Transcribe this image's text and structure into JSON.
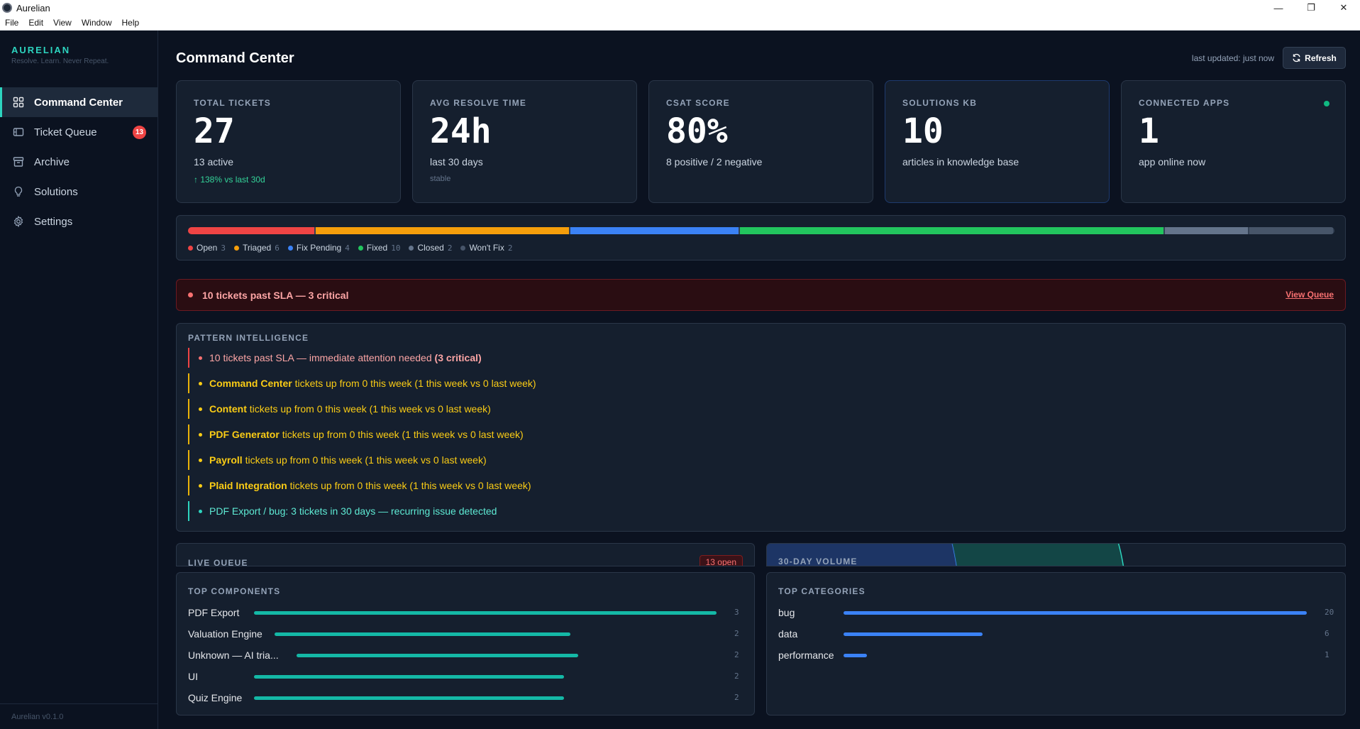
{
  "window": {
    "title": "Aurelian",
    "controls": [
      "—",
      "❐",
      "✕"
    ]
  },
  "menu": [
    "File",
    "Edit",
    "View",
    "Window",
    "Help"
  ],
  "sidebar": {
    "brand": "AURELIAN",
    "tagline": "Resolve. Learn. Never Repeat.",
    "items": [
      {
        "label": "Command Center",
        "icon": "grid-icon",
        "active": true
      },
      {
        "label": "Ticket Queue",
        "icon": "ticket-icon",
        "badge": "13"
      },
      {
        "label": "Archive",
        "icon": "archive-icon"
      },
      {
        "label": "Solutions",
        "icon": "lightbulb-icon"
      },
      {
        "label": "Settings",
        "icon": "gear-icon"
      }
    ],
    "version": "Aurelian v0.1.0"
  },
  "header": {
    "title": "Command Center",
    "last_updated": "last updated: just now",
    "refresh_label": "Refresh"
  },
  "cards": [
    {
      "label": "TOTAL TICKETS",
      "value": "27",
      "sub": "13 active",
      "trend": "↑ 138% vs last 30d"
    },
    {
      "label": "AVG RESOLVE TIME",
      "value": "24h",
      "sub": "last 30 days",
      "trend": "stable"
    },
    {
      "label": "CSAT SCORE",
      "value": "80%",
      "sub": "8 positive / 2 negative"
    },
    {
      "label": "SOLUTIONS KB",
      "value": "10",
      "sub": "articles in knowledge base"
    },
    {
      "label": "CONNECTED APPS",
      "value": "1",
      "sub": "app online now"
    }
  ],
  "status": [
    {
      "label": "Open",
      "count": "3",
      "color": "#ef4444"
    },
    {
      "label": "Triaged",
      "count": "6",
      "color": "#f59e0b"
    },
    {
      "label": "Fix Pending",
      "count": "4",
      "color": "#3b82f6"
    },
    {
      "label": "Fixed",
      "count": "10",
      "color": "#22c55e"
    },
    {
      "label": "Closed",
      "count": "2",
      "color": "#64748b"
    },
    {
      "label": "Won't Fix",
      "count": "2",
      "color": "#475569"
    }
  ],
  "alert": {
    "text": "10 tickets past SLA — 3 critical",
    "link": "View Queue"
  },
  "patterns": {
    "title": "PATTERN INTELLIGENCE",
    "items": [
      {
        "kind": "red",
        "lead": "",
        "text": "10 tickets past SLA — immediate attention needed ",
        "tail": "(3 critical)"
      },
      {
        "kind": "yellow",
        "lead": "Command Center",
        "text": " tickets up from 0 this week (1 this week vs 0 last week)",
        "tail": ""
      },
      {
        "kind": "yellow",
        "lead": "Content",
        "text": " tickets up from 0 this week (1 this week vs 0 last week)",
        "tail": ""
      },
      {
        "kind": "yellow",
        "lead": "PDF Generator",
        "text": " tickets up from 0 this week (1 this week vs 0 last week)",
        "tail": ""
      },
      {
        "kind": "yellow",
        "lead": "Payroll",
        "text": " tickets up from 0 this week (1 this week vs 0 last week)",
        "tail": ""
      },
      {
        "kind": "yellow",
        "lead": "Plaid Integration",
        "text": " tickets up from 0 this week (1 this week vs 0 last week)",
        "tail": ""
      },
      {
        "kind": "teal",
        "lead": "",
        "text": "PDF Export / bug: 3 tickets in 30 days — recurring issue detected",
        "tail": ""
      }
    ]
  },
  "live_queue": {
    "title": "LIVE QUEUE",
    "badge": "13 open"
  },
  "volume": {
    "title": "30-DAY VOLUME"
  },
  "top_components": {
    "title": "TOP COMPONENTS",
    "rows": [
      {
        "label": "PDF Export",
        "value": "3",
        "fill": 1.0
      },
      {
        "label": "Valuation Engine",
        "value": "2",
        "fill": 0.67
      },
      {
        "label": "Unknown — AI tria...",
        "value": "2",
        "fill": 0.67
      },
      {
        "label": "UI",
        "value": "2",
        "fill": 0.67
      },
      {
        "label": "Quiz Engine",
        "value": "2",
        "fill": 0.67
      }
    ]
  },
  "top_categories": {
    "title": "TOP CATEGORIES",
    "rows": [
      {
        "label": "bug",
        "value": "20",
        "fill": 1.0
      },
      {
        "label": "data",
        "value": "6",
        "fill": 0.3
      },
      {
        "label": "performance",
        "value": "1",
        "fill": 0.05
      }
    ]
  },
  "colors": {
    "accent": "#2dd4bf",
    "danger": "#ef4444",
    "warning": "#facc15",
    "bar_teal": "#14b8a6",
    "bar_blue": "#3b82f6"
  }
}
